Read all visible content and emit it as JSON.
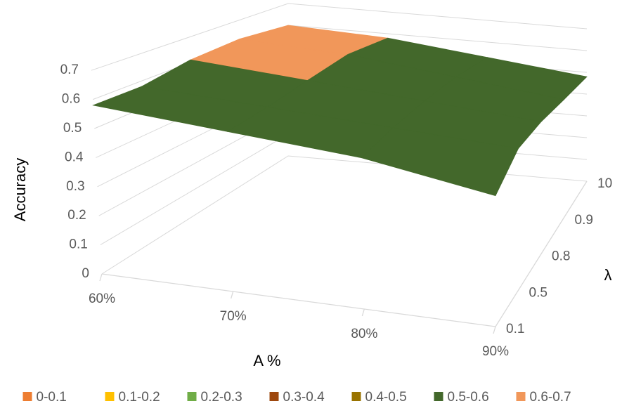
{
  "chart_data": {
    "type": "surface",
    "z_title": "Accuracy",
    "x_title": "A %",
    "y_title": "λ",
    "categories": [
      "60%",
      "70%",
      "80%",
      "90%"
    ],
    "depth_categories": [
      "0.1",
      "0.5",
      "0.8",
      "0.9",
      "10"
    ],
    "rows": [
      [
        0.58,
        0.55,
        0.52,
        0.45
      ],
      [
        0.58,
        0.56,
        0.54,
        0.52
      ],
      [
        0.61,
        0.58,
        0.55,
        0.52
      ],
      [
        0.62,
        0.6,
        0.55,
        0.5
      ],
      [
        0.6,
        0.58,
        0.53,
        0.48
      ]
    ],
    "zlim": [
      0,
      0.7
    ],
    "zticks": [
      0,
      0.1,
      0.2,
      0.3,
      0.4,
      0.5,
      0.6,
      0.7
    ],
    "grid": true,
    "legend": [
      {
        "name": "0-0.1",
        "color": "#ed7d31"
      },
      {
        "name": "0.1-0.2",
        "color": "#ffc000"
      },
      {
        "name": "0.2-0.3",
        "color": "#70ad47"
      },
      {
        "name": "0.3-0.4",
        "color": "#9e480e"
      },
      {
        "name": "0.4-0.5",
        "color": "#997300"
      },
      {
        "name": "0.5-0.6",
        "color": "#43682b"
      },
      {
        "name": "0.6-0.7",
        "color": "#f1975a"
      }
    ],
    "legend_position": "bottom"
  }
}
